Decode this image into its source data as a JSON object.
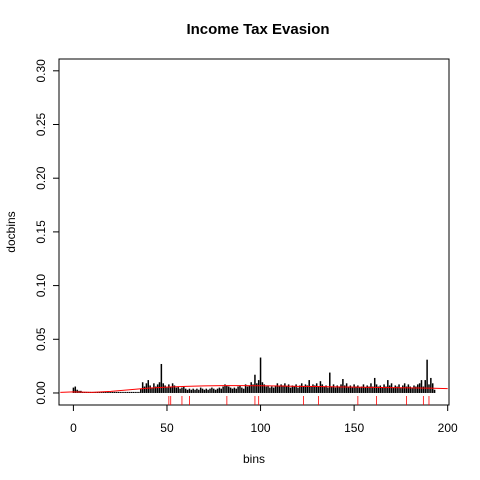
{
  "chart_data": {
    "type": "spike",
    "title": "Income Tax Evasion",
    "xlabel": "bins",
    "ylabel": "docbins",
    "xlim": [
      -7.7,
      200.7
    ],
    "ylim": [
      -0.0112,
      0.311
    ],
    "xticks": [
      0,
      50,
      100,
      150,
      200
    ],
    "yticks": [
      {
        "value": 0,
        "label": "0.00"
      },
      {
        "value": 0.05,
        "label": "0.05"
      },
      {
        "value": 0.1,
        "label": "0.10"
      },
      {
        "value": 0.15,
        "label": "0.15"
      },
      {
        "value": 0.2,
        "label": "0.20"
      },
      {
        "value": 0.25,
        "label": "0.25"
      },
      {
        "value": 0.3,
        "label": "0.30"
      }
    ],
    "color": "#000000",
    "x": [
      0,
      1,
      2,
      3,
      4,
      5,
      6,
      7,
      8,
      9,
      10,
      11,
      12,
      13,
      14,
      15,
      16,
      17,
      18,
      19,
      20,
      21,
      22,
      23,
      24,
      25,
      26,
      27,
      28,
      29,
      30,
      31,
      32,
      33,
      34,
      35,
      36,
      37,
      38,
      39,
      40,
      41,
      42,
      43,
      44,
      45,
      46,
      47,
      48,
      49,
      50,
      51,
      52,
      53,
      54,
      55,
      56,
      57,
      58,
      59,
      60,
      61,
      62,
      63,
      64,
      65,
      66,
      67,
      68,
      69,
      70,
      71,
      72,
      73,
      74,
      75,
      76,
      77,
      78,
      79,
      80,
      81,
      82,
      83,
      84,
      85,
      86,
      87,
      88,
      89,
      90,
      91,
      92,
      93,
      94,
      95,
      96,
      97,
      98,
      99,
      100,
      101,
      102,
      103,
      104,
      105,
      106,
      107,
      108,
      109,
      110,
      111,
      112,
      113,
      114,
      115,
      116,
      117,
      118,
      119,
      120,
      121,
      122,
      123,
      124,
      125,
      126,
      127,
      128,
      129,
      130,
      131,
      132,
      133,
      134,
      135,
      136,
      137,
      138,
      139,
      140,
      141,
      142,
      143,
      144,
      145,
      146,
      147,
      148,
      149,
      150,
      151,
      152,
      153,
      154,
      155,
      156,
      157,
      158,
      159,
      160,
      161,
      162,
      163,
      164,
      165,
      166,
      167,
      168,
      169,
      170,
      171,
      172,
      173,
      174,
      175,
      176,
      177,
      178,
      179,
      180,
      181,
      182,
      183,
      184,
      185,
      186,
      187,
      188,
      189,
      190,
      191,
      192,
      193
    ],
    "values": [
      0.005,
      0.006,
      0.003,
      0.002,
      0.002,
      0.001,
      0.001,
      0.001,
      0.001,
      0.001,
      0.001,
      0.001,
      0.001,
      0.001,
      0.001,
      0.001,
      0.001,
      0.001,
      0.001,
      0.001,
      0.001,
      0.001,
      0.001,
      0.001,
      0.001,
      0.001,
      0.001,
      0.001,
      0.001,
      0.001,
      0.001,
      0.001,
      0.001,
      0.001,
      0.001,
      0.001,
      0.004,
      0.01,
      0.006,
      0.009,
      0.012,
      0.007,
      0.005,
      0.009,
      0.006,
      0.008,
      0.01,
      0.027,
      0.009,
      0.007,
      0.005,
      0.008,
      0.006,
      0.009,
      0.007,
      0.005,
      0.006,
      0.004,
      0.005,
      0.006,
      0.004,
      0.003,
      0.004,
      0.003,
      0.004,
      0.003,
      0.004,
      0.003,
      0.005,
      0.004,
      0.003,
      0.004,
      0.003,
      0.004,
      0.005,
      0.004,
      0.003,
      0.004,
      0.005,
      0.004,
      0.006,
      0.008,
      0.007,
      0.006,
      0.005,
      0.004,
      0.005,
      0.004,
      0.006,
      0.007,
      0.005,
      0.004,
      0.008,
      0.006,
      0.007,
      0.01,
      0.008,
      0.017,
      0.009,
      0.012,
      0.033,
      0.01,
      0.008,
      0.006,
      0.007,
      0.005,
      0.006,
      0.005,
      0.007,
      0.009,
      0.006,
      0.008,
      0.007,
      0.009,
      0.006,
      0.008,
      0.005,
      0.007,
      0.006,
      0.008,
      0.005,
      0.007,
      0.009,
      0.006,
      0.008,
      0.007,
      0.012,
      0.006,
      0.008,
      0.007,
      0.009,
      0.006,
      0.011,
      0.008,
      0.006,
      0.007,
      0.005,
      0.019,
      0.006,
      0.008,
      0.005,
      0.007,
      0.006,
      0.008,
      0.013,
      0.007,
      0.009,
      0.006,
      0.007,
      0.005,
      0.008,
      0.006,
      0.007,
      0.005,
      0.006,
      0.008,
      0.005,
      0.007,
      0.006,
      0.009,
      0.006,
      0.014,
      0.008,
      0.006,
      0.007,
      0.005,
      0.008,
      0.006,
      0.012,
      0.007,
      0.009,
      0.005,
      0.007,
      0.006,
      0.008,
      0.005,
      0.007,
      0.009,
      0.006,
      0.008,
      0.006,
      0.005,
      0.007,
      0.006,
      0.008,
      0.009,
      0.012,
      0.006,
      0.012,
      0.031,
      0.008,
      0.014,
      0.009,
      0.003
    ],
    "smooth": {
      "color": "#ff0000",
      "x": [
        -7,
        0,
        10,
        20,
        30,
        40,
        50,
        60,
        70,
        80,
        90,
        100,
        110,
        120,
        130,
        140,
        150,
        160,
        170,
        180,
        190,
        200
      ],
      "values": [
        0.0005,
        0.001,
        0.0005,
        0.0015,
        0.003,
        0.0045,
        0.0055,
        0.0062,
        0.0066,
        0.0068,
        0.0068,
        0.0067,
        0.0065,
        0.0062,
        0.006,
        0.0057,
        0.0055,
        0.0052,
        0.005,
        0.0048,
        0.0045,
        0.004
      ]
    },
    "rug": {
      "color": "#ff0000",
      "x": [
        51,
        52,
        58,
        62,
        82,
        97,
        99,
        123,
        131,
        152,
        162,
        178,
        187,
        190
      ]
    }
  }
}
